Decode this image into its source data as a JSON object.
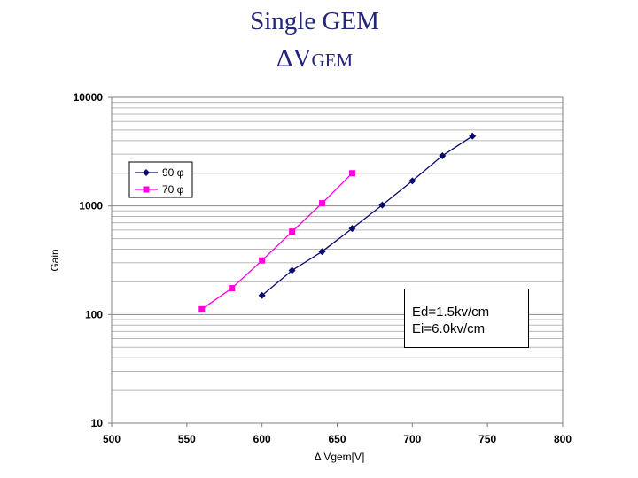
{
  "slide": {
    "title": "Single GEM",
    "subtitle_main": "ΔV",
    "subtitle_sub": "GEM"
  },
  "annotation": {
    "line1": "Ed=1.5kv/cm",
    "line2": "Ei=6.0kv/cm"
  },
  "chart_data": {
    "type": "line",
    "xlabel": "Δ Vgem[V]",
    "ylabel": "Gain",
    "xlim": [
      500,
      800
    ],
    "ylim": [
      10,
      10000
    ],
    "yscale": "log",
    "xticks": [
      500,
      550,
      600,
      650,
      700,
      750,
      800
    ],
    "yticks": [
      10,
      100,
      1000,
      10000
    ],
    "grid": true,
    "legend_position": "top-left",
    "series": [
      {
        "name": "90 φ",
        "color": "#0a0a6e",
        "marker": "diamond",
        "x": [
          600,
          620,
          640,
          660,
          680,
          700,
          720,
          740
        ],
        "y": [
          150,
          255,
          380,
          620,
          1020,
          1700,
          2900,
          4400
        ]
      },
      {
        "name": "70 φ",
        "color": "#ff00dd",
        "marker": "square",
        "x": [
          560,
          580,
          600,
          620,
          640,
          660
        ],
        "y": [
          112,
          175,
          315,
          580,
          1060,
          2000
        ]
      }
    ]
  }
}
